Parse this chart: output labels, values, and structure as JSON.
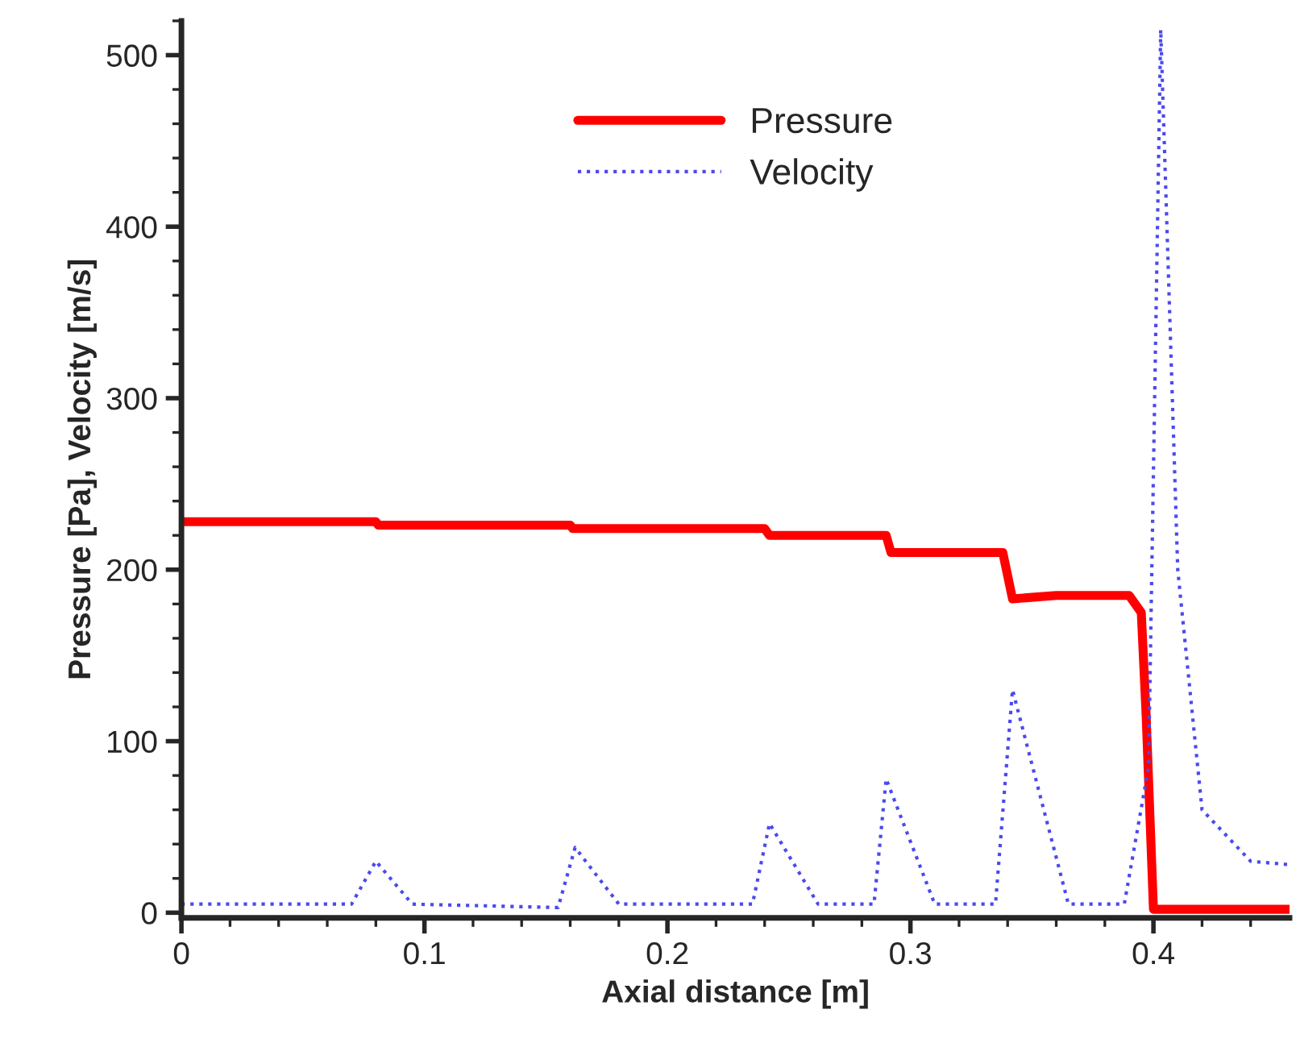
{
  "chart_data": {
    "type": "line",
    "xlabel": "Axial distance [m]",
    "ylabel": "Pressure [Pa], Velocity [m/s]",
    "xlim": [
      0,
      0.456
    ],
    "ylim": [
      -3,
      520
    ],
    "xticks": [
      0,
      0.1,
      0.2,
      0.3,
      0.4
    ],
    "yticks": [
      0,
      100,
      200,
      300,
      400,
      500
    ],
    "grid": false,
    "legend": "top",
    "marker": "none",
    "series": [
      {
        "name": "Pressure",
        "color": "#ff0000",
        "line_style": "solid",
        "x": [
          0,
          0.08,
          0.081,
          0.16,
          0.161,
          0.24,
          0.242,
          0.29,
          0.292,
          0.338,
          0.342,
          0.36,
          0.39,
          0.395,
          0.397,
          0.4,
          0.456
        ],
        "values": [
          228,
          228,
          226,
          226,
          224,
          224,
          220,
          220,
          210,
          210,
          183,
          185,
          185,
          175,
          115,
          2,
          2
        ]
      },
      {
        "name": "Velocity",
        "color": "#4a4af0",
        "line_style": "dotted",
        "x": [
          0,
          0.07,
          0.08,
          0.095,
          0.155,
          0.162,
          0.18,
          0.235,
          0.242,
          0.262,
          0.285,
          0.29,
          0.31,
          0.335,
          0.342,
          0.365,
          0.388,
          0.398,
          0.403,
          0.41,
          0.42,
          0.44,
          0.456
        ],
        "values": [
          5,
          5,
          30,
          5,
          3,
          38,
          5,
          5,
          52,
          5,
          5,
          78,
          5,
          5,
          130,
          5,
          5,
          85,
          515,
          200,
          60,
          30,
          28
        ]
      }
    ]
  }
}
